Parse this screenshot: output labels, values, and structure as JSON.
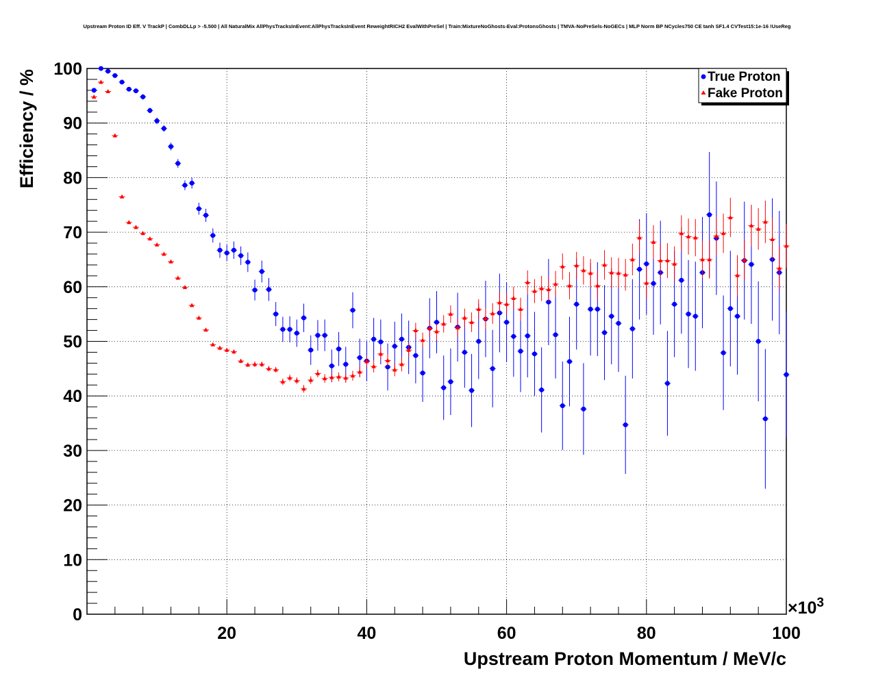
{
  "chart_data": {
    "type": "scatter",
    "title": "Upstream Proton ID Eff. V TrackP | CombDLLp > -5.500 | All NaturalMix AllPhysTracksInEvent:AllPhysTracksInEvent ReweightRICH2 EvalWithPreSel | Train:MixtureNoGhosts-Eval:ProtonsGhosts | TMVA-NoPreSels-NoGECs | MLP Norm BP NCycles750 CE tanh SF1.4 CVTest15:1e-16 !UseReg",
    "xlabel": "Upstream Proton Momentum / MeV/c",
    "ylabel": "Efficiency / %",
    "x_multiplier_label": "×10",
    "x_multiplier_exp": "3",
    "xlim": [
      0,
      100
    ],
    "ylim": [
      0,
      100
    ],
    "x_ticks": [
      20,
      40,
      60,
      80,
      100
    ],
    "y_ticks": [
      0,
      10,
      20,
      30,
      40,
      50,
      60,
      70,
      80,
      90,
      100
    ],
    "grid": true,
    "legend_position": "top-right",
    "x": [
      1,
      2,
      3,
      4,
      5,
      6,
      7,
      8,
      9,
      10,
      11,
      12,
      13,
      14,
      15,
      16,
      17,
      18,
      19,
      20,
      21,
      22,
      23,
      24,
      25,
      26,
      27,
      28,
      29,
      30,
      31,
      32,
      33,
      34,
      35,
      36,
      37,
      38,
      39,
      40,
      41,
      42,
      43,
      44,
      45,
      46,
      47,
      48,
      49,
      50,
      51,
      52,
      53,
      54,
      55,
      56,
      57,
      58,
      59,
      60,
      61,
      62,
      63,
      64,
      65,
      66,
      67,
      68,
      69,
      70,
      71,
      72,
      73,
      74,
      75,
      76,
      77,
      78,
      79,
      80,
      81,
      82,
      83,
      84,
      85,
      86,
      87,
      88,
      89,
      90,
      91,
      92,
      93,
      94,
      95,
      96,
      97,
      98,
      99,
      100
    ],
    "series": [
      {
        "name": "True Proton",
        "color": "#0000ff",
        "marker": "circle",
        "values": [
          96.0,
          100.0,
          99.5,
          98.7,
          97.5,
          96.2,
          95.9,
          94.8,
          92.3,
          90.4,
          89.0,
          85.7,
          82.6,
          78.6,
          79.0,
          74.3,
          73.1,
          69.4,
          66.7,
          66.2,
          66.7,
          65.7,
          64.5,
          59.4,
          62.8,
          59.5,
          55.0,
          52.2,
          52.2,
          51.5,
          54.3,
          48.4,
          51.1,
          51.1,
          45.5,
          48.6,
          45.8,
          55.7,
          47.0,
          46.4,
          50.4,
          49.9,
          45.3,
          49.1,
          50.4,
          48.9,
          47.4,
          44.2,
          52.4,
          53.5,
          41.5,
          42.6,
          52.6,
          48.0,
          41.0,
          50.0,
          54.1,
          45.0,
          55.2,
          53.5,
          50.9,
          48.2,
          51.0,
          47.7,
          41.1,
          57.2,
          51.2,
          38.2,
          46.3,
          56.8,
          37.6,
          55.9,
          55.9,
          51.6,
          54.6,
          53.3,
          34.7,
          52.3,
          63.2,
          64.2,
          60.6,
          62.6,
          42.3,
          56.8,
          61.2,
          55.0,
          54.6,
          62.6,
          73.2,
          68.9,
          47.9,
          56.0,
          54.6,
          64.8,
          64.1,
          50.0,
          35.8,
          65.0,
          62.6,
          43.9
        ],
        "errors": [
          0.4,
          0.3,
          0.3,
          0.4,
          0.4,
          0.4,
          0.4,
          0.5,
          0.5,
          0.6,
          0.6,
          0.7,
          0.8,
          0.9,
          1.0,
          1.1,
          1.2,
          1.3,
          1.4,
          1.5,
          1.6,
          1.7,
          1.8,
          1.9,
          2.0,
          2.1,
          2.2,
          2.3,
          2.4,
          2.5,
          2.6,
          2.7,
          2.8,
          2.9,
          3.0,
          3.1,
          3.2,
          3.3,
          3.5,
          3.7,
          3.9,
          4.1,
          4.3,
          4.5,
          4.7,
          4.9,
          5.1,
          5.3,
          5.5,
          5.7,
          5.9,
          6.1,
          6.3,
          6.5,
          6.7,
          6.9,
          7.0,
          7.1,
          7.2,
          7.3,
          7.4,
          7.5,
          7.6,
          7.7,
          7.8,
          7.9,
          8.0,
          8.1,
          8.2,
          8.3,
          8.4,
          8.5,
          8.6,
          8.7,
          8.8,
          8.9,
          9.0,
          9.1,
          9.2,
          9.3,
          9.4,
          9.5,
          9.6,
          9.7,
          9.8,
          9.9,
          10.0,
          10.2,
          11.5,
          10.4,
          10.5,
          10.6,
          10.7,
          10.8,
          10.9,
          11.0,
          12.8,
          11.2,
          11.3,
          11.4
        ]
      },
      {
        "name": "Fake Proton",
        "color": "#ff0000",
        "marker": "triangle",
        "values": [
          94.8,
          97.5,
          95.8,
          87.7,
          76.5,
          71.8,
          70.9,
          69.8,
          68.8,
          67.7,
          66.0,
          64.6,
          61.6,
          59.9,
          56.6,
          54.3,
          52.1,
          49.4,
          48.8,
          48.4,
          48.1,
          46.4,
          45.7,
          45.8,
          45.8,
          45.0,
          44.8,
          42.6,
          43.3,
          42.8,
          41.3,
          42.9,
          44.1,
          43.2,
          43.4,
          43.5,
          43.3,
          43.7,
          44.4,
          46.3,
          45.4,
          47.7,
          46.5,
          44.8,
          45.8,
          48.4,
          52.0,
          50.2,
          52.4,
          51.8,
          53.2,
          55.0,
          52.5,
          54.3,
          53.5,
          55.9,
          54.2,
          55.1,
          57.1,
          56.8,
          57.9,
          55.9,
          60.8,
          59.2,
          59.7,
          59.5,
          60.5,
          63.7,
          60.2,
          63.9,
          63.0,
          62.5,
          60.2,
          64.0,
          62.6,
          62.5,
          62.2,
          65.0,
          69.0,
          60.7,
          68.2,
          64.8,
          64.8,
          64.2,
          69.8,
          69.2,
          69.0,
          65.0,
          65.0,
          69.3,
          69.8,
          72.7,
          62.1,
          64.9,
          71.2,
          70.6,
          71.9,
          68.7,
          63.4,
          67.5
        ],
        "errors": [
          0.3,
          0.3,
          0.3,
          0.3,
          0.3,
          0.3,
          0.3,
          0.3,
          0.3,
          0.3,
          0.3,
          0.3,
          0.3,
          0.3,
          0.3,
          0.3,
          0.3,
          0.3,
          0.4,
          0.4,
          0.4,
          0.4,
          0.4,
          0.5,
          0.5,
          0.5,
          0.5,
          0.6,
          0.6,
          0.6,
          0.7,
          0.7,
          0.7,
          0.8,
          0.8,
          0.8,
          0.9,
          0.9,
          1.0,
          1.0,
          1.1,
          1.1,
          1.2,
          1.2,
          1.3,
          1.3,
          1.4,
          1.4,
          1.5,
          1.5,
          1.6,
          1.6,
          1.7,
          1.7,
          1.8,
          1.8,
          1.9,
          1.9,
          2.0,
          2.0,
          2.1,
          2.1,
          2.2,
          2.2,
          2.3,
          2.3,
          2.4,
          2.4,
          2.5,
          2.5,
          2.6,
          2.6,
          2.7,
          2.7,
          2.8,
          2.8,
          2.9,
          2.9,
          3.0,
          3.0,
          3.1,
          3.1,
          3.2,
          3.2,
          3.3,
          3.3,
          3.4,
          3.4,
          3.5,
          3.5,
          3.6,
          3.6,
          3.7,
          3.7,
          3.8,
          3.8,
          3.9,
          3.9,
          4.0,
          4.0
        ]
      }
    ]
  }
}
